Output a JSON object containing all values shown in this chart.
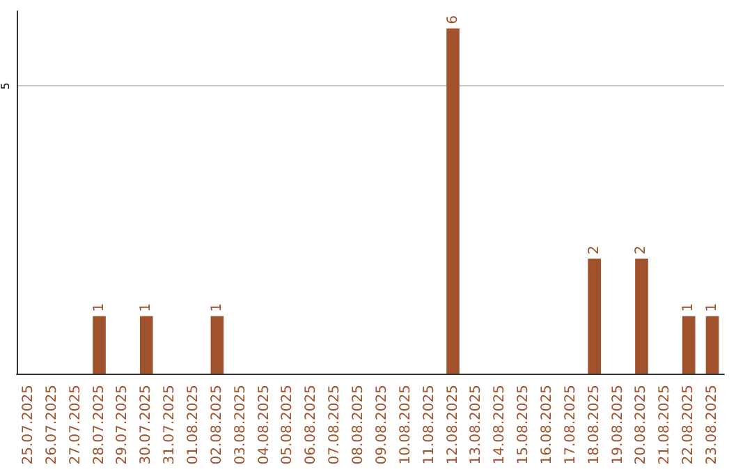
{
  "chart_data": {
    "type": "bar",
    "categories": [
      "25.07.2025",
      "26.07.2025",
      "27.07.2025",
      "28.07.2025",
      "29.07.2025",
      "30.07.2025",
      "31.07.2025",
      "01.08.2025",
      "02.08.2025",
      "03.08.2025",
      "04.08.2025",
      "05.08.2025",
      "06.08.2025",
      "07.08.2025",
      "08.08.2025",
      "09.08.2025",
      "10.08.2025",
      "11.08.2025",
      "12.08.2025",
      "13.08.2025",
      "14.08.2025",
      "15.08.2025",
      "16.08.2025",
      "17.08.2025",
      "18.08.2025",
      "19.08.2025",
      "20.08.2025",
      "21.08.2025",
      "22.08.2025",
      "23.08.2025"
    ],
    "values": [
      0,
      0,
      0,
      1,
      0,
      1,
      0,
      0,
      1,
      0,
      0,
      0,
      0,
      0,
      0,
      0,
      0,
      0,
      6,
      0,
      0,
      0,
      0,
      0,
      2,
      0,
      2,
      0,
      1,
      1
    ],
    "value_labels": [
      null,
      null,
      null,
      "1",
      null,
      "1",
      null,
      null,
      "1",
      null,
      null,
      null,
      null,
      null,
      null,
      null,
      null,
      null,
      "6",
      null,
      null,
      null,
      null,
      null,
      "2",
      null,
      "2",
      null,
      "1",
      "1"
    ],
    "color": "#a0522d",
    "ylim": [
      0,
      6.3
    ],
    "yticks": [
      5
    ],
    "grid": "y"
  }
}
